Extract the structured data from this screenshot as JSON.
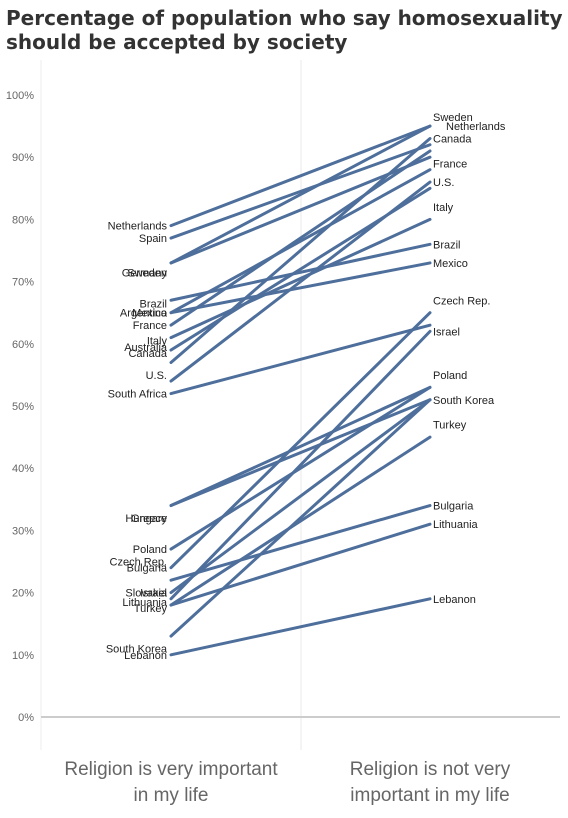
{
  "chart_data": {
    "type": "line",
    "title_lines": [
      "Percentage of population who say homosexuality",
      "should be accepted by society"
    ],
    "categories": [
      "Religion is very important in my life",
      "Religion is not very important in my life"
    ],
    "category_label_lines": [
      [
        "Religion is very important",
        "in my life"
      ],
      [
        "Religion is not very",
        "important in my life"
      ]
    ],
    "ylim": [
      0,
      100
    ],
    "yticks": [
      "0%",
      "10%",
      "20%",
      "30%",
      "40%",
      "50%",
      "60%",
      "70%",
      "80%",
      "90%",
      "100%"
    ],
    "grid": false,
    "series": [
      {
        "name": "Netherlands",
        "values": [
          79,
          95
        ]
      },
      {
        "name": "Spain",
        "values": [
          77,
          92
        ]
      },
      {
        "name": "Germany",
        "values": [
          73,
          90
        ]
      },
      {
        "name": "Sweden",
        "values": [
          73,
          95
        ]
      },
      {
        "name": "Brazil",
        "values": [
          67,
          76
        ]
      },
      {
        "name": "Argentina",
        "values": [
          65,
          88
        ]
      },
      {
        "name": "Mexico",
        "values": [
          65,
          73
        ]
      },
      {
        "name": "France",
        "values": [
          63,
          91
        ]
      },
      {
        "name": "Italy",
        "values": [
          61,
          80
        ]
      },
      {
        "name": "Australia",
        "values": [
          59,
          85
        ]
      },
      {
        "name": "Canada",
        "values": [
          57,
          93
        ]
      },
      {
        "name": "U.S.",
        "values": [
          54,
          86
        ]
      },
      {
        "name": "South Africa",
        "values": [
          52,
          63
        ]
      },
      {
        "name": "Hungary",
        "values": [
          34,
          53
        ]
      },
      {
        "name": "Greece",
        "values": [
          34,
          51
        ]
      },
      {
        "name": "Poland",
        "values": [
          27,
          53
        ]
      },
      {
        "name": "Czech Rep.",
        "values": [
          24,
          65
        ]
      },
      {
        "name": "Bulgaria",
        "values": [
          22,
          34
        ]
      },
      {
        "name": "Slovakia",
        "values": [
          20,
          51
        ]
      },
      {
        "name": "Israel",
        "values": [
          19,
          62
        ]
      },
      {
        "name": "Lithuania",
        "values": [
          18,
          31
        ]
      },
      {
        "name": "Turkey",
        "values": [
          18,
          45
        ]
      },
      {
        "name": "South Korea",
        "values": [
          13,
          51
        ]
      },
      {
        "name": "Lebanon",
        "values": [
          10,
          19
        ]
      }
    ],
    "left_labels": [
      {
        "text": "Netherlands",
        "y": 79
      },
      {
        "text": "Spain",
        "y": 77
      },
      {
        "text": "Germany",
        "y": 71.5
      },
      {
        "text": "Sweden",
        "y": 71.5
      },
      {
        "text": "Brazil",
        "y": 66.5
      },
      {
        "text": "Argentina",
        "y": 65
      },
      {
        "text": "Mexico",
        "y": 65
      },
      {
        "text": "France",
        "y": 63
      },
      {
        "text": "Italy",
        "y": 60.5
      },
      {
        "text": "Australia",
        "y": 59.5
      },
      {
        "text": "Canada",
        "y": 58.5
      },
      {
        "text": "U.S.",
        "y": 55
      },
      {
        "text": "South Africa",
        "y": 52
      },
      {
        "text": "Hungary",
        "y": 32
      },
      {
        "text": "Greece",
        "y": 32
      },
      {
        "text": "Poland",
        "y": 27
      },
      {
        "text": "Czech Rep.",
        "y": 25
      },
      {
        "text": "Bulgaria",
        "y": 24
      },
      {
        "text": "Slovakia",
        "y": 20
      },
      {
        "text": "Israel",
        "y": 20
      },
      {
        "text": "Lithuania",
        "y": 18.5
      },
      {
        "text": "Turkey",
        "y": 17.5
      },
      {
        "text": "South Korea",
        "y": 11
      },
      {
        "text": "Lebanon",
        "y": 10
      }
    ],
    "right_labels": [
      {
        "text": "Sweden",
        "y": 96.5
      },
      {
        "text": "Netherlands",
        "y": 95
      },
      {
        "text": "Canada",
        "y": 93
      },
      {
        "text": "France",
        "y": 89
      },
      {
        "text": "U.S.",
        "y": 86
      },
      {
        "text": "Italy",
        "y": 82
      },
      {
        "text": "Brazil",
        "y": 76
      },
      {
        "text": "Mexico",
        "y": 73
      },
      {
        "text": "Czech Rep.",
        "y": 67
      },
      {
        "text": "Israel",
        "y": 62
      },
      {
        "text": "Poland",
        "y": 55
      },
      {
        "text": "South Korea",
        "y": 51
      },
      {
        "text": "Turkey",
        "y": 47
      },
      {
        "text": "Bulgaria",
        "y": 34
      },
      {
        "text": "Lithuania",
        "y": 31
      },
      {
        "text": "Lebanon",
        "y": 19
      }
    ]
  },
  "colors": {
    "line": "#4e6f9b",
    "baseline": "#cccccc",
    "divider": "#e8e8e8"
  }
}
